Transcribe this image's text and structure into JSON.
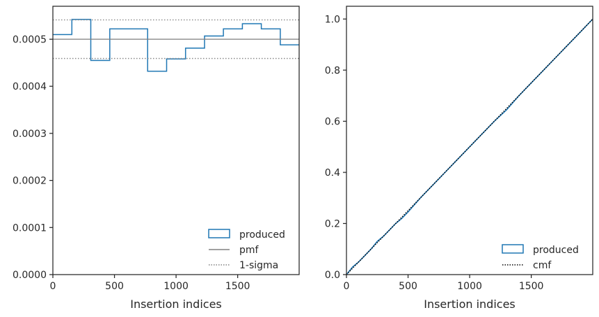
{
  "chart_data": [
    {
      "type": "line",
      "xlabel": "Insertion indices",
      "ylabel": "",
      "xlim": [
        0,
        1999
      ],
      "ylim": [
        0,
        0.00057
      ],
      "xticks": [
        0,
        500,
        1000,
        1500
      ],
      "yticks": [
        0,
        0.0001,
        0.0002,
        0.0003,
        0.0004,
        0.0005
      ],
      "ytick_labels": [
        "0.0000",
        "0.0001",
        "0.0002",
        "0.0003",
        "0.0004",
        "0.0005"
      ],
      "xtick_labels": [
        "0",
        "500",
        "1000",
        "1500"
      ],
      "legend_position": "lower-right",
      "series": [
        {
          "name": "produced",
          "style": "step",
          "color": "#1f77b4",
          "bin_edges": [
            0,
            154,
            308,
            462,
            615,
            769,
            923,
            1077,
            1231,
            1384,
            1538,
            1692,
            1846,
            1999
          ],
          "values": [
            0.00051,
            0.000542,
            0.000455,
            0.000522,
            0.000522,
            0.000432,
            0.000458,
            0.000481,
            0.000507,
            0.000522,
            0.000533,
            0.000522,
            0.000488
          ]
        },
        {
          "name": "pmf",
          "style": "solid",
          "color": "#808080",
          "value": 0.0005
        },
        {
          "name": "1-sigma",
          "style": "dotted",
          "color": "#808080",
          "values": [
            0.000541,
            0.000459
          ]
        }
      ]
    },
    {
      "type": "line",
      "xlabel": "Insertion indices",
      "ylabel": "",
      "xlim": [
        0,
        1999
      ],
      "ylim": [
        0,
        1.05
      ],
      "xticks": [
        0,
        500,
        1000,
        1500
      ],
      "xtick_labels": [
        "0",
        "500",
        "1000",
        "1500"
      ],
      "yticks": [
        0,
        0.2,
        0.4,
        0.6,
        0.8,
        1.0
      ],
      "ytick_labels": [
        "0.0",
        "0.2",
        "0.4",
        "0.6",
        "0.8",
        "1.0"
      ],
      "legend_position": "lower-right",
      "series": [
        {
          "name": "produced",
          "style": "solid",
          "color": "#1f77b4",
          "x": [
            0,
            50,
            100,
            150,
            200,
            250,
            300,
            350,
            400,
            450,
            500,
            600,
            700,
            800,
            900,
            1000,
            1100,
            1200,
            1300,
            1400,
            1500,
            1600,
            1700,
            1800,
            1900,
            1999
          ],
          "y": [
            0,
            0.03,
            0.05,
            0.075,
            0.1,
            0.13,
            0.15,
            0.175,
            0.2,
            0.22,
            0.245,
            0.3,
            0.35,
            0.4,
            0.45,
            0.5,
            0.55,
            0.6,
            0.645,
            0.7,
            0.75,
            0.8,
            0.85,
            0.9,
            0.95,
            1.0
          ]
        },
        {
          "name": "cmf",
          "style": "dotted",
          "color": "#000000",
          "x": [
            0,
            1999
          ],
          "y": [
            0,
            1.0
          ]
        }
      ]
    }
  ]
}
